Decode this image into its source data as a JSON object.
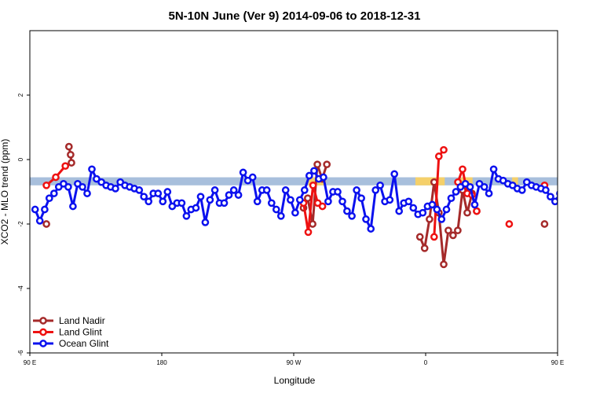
{
  "chart_data": {
    "type": "line",
    "title": "5N-10N June (Ver 9)   2014-09-06 to 2018-12-31",
    "xlabel": "Longitude",
    "ylabel": "XCO2 - MLO trend (ppm)",
    "xlim": [
      90,
      450
    ],
    "ylim": [
      -6,
      4
    ],
    "x_ticks": [
      {
        "value": 90,
        "label": "90 E"
      },
      {
        "value": 180,
        "label": "180"
      },
      {
        "value": 270,
        "label": "90 W"
      },
      {
        "value": 360,
        "label": "0"
      },
      {
        "value": 450,
        "label": "90 E"
      },
      {
        "value": 540,
        "label": "180"
      }
    ],
    "y_ticks": [
      {
        "value": -6,
        "label": "-6"
      },
      {
        "value": -4,
        "label": "-4"
      },
      {
        "value": -2,
        "label": "-2"
      },
      {
        "value": 0,
        "label": "0"
      },
      {
        "value": 2,
        "label": "2"
      }
    ],
    "band": {
      "y_low": -0.8,
      "y_high": -0.55,
      "color": "#a8bfdc",
      "land_color": "#f5d06a"
    },
    "legend_position": "bottom-left",
    "series": [
      {
        "name": "Land Nadir",
        "color": "#a52a2a",
        "segments": [
          [
            [
              101.3,
              -2.0
            ]
          ],
          [
            [
              116.7,
              0.4
            ],
            [
              117.8,
              0.15
            ],
            [
              118.4,
              -0.1
            ]
          ],
          [
            [
              276.7,
              -1.5
            ],
            [
              279.6,
              -1.2
            ],
            [
              282.9,
              -2.0
            ],
            [
              286.1,
              -0.15
            ],
            [
              289.4,
              -0.6
            ],
            [
              292.6,
              -0.15
            ]
          ],
          [
            [
              356.1,
              -2.4
            ],
            [
              359.3,
              -2.75
            ],
            [
              362.6,
              -1.85
            ],
            [
              365.8,
              -0.7
            ],
            [
              369.0,
              -1.65
            ],
            [
              372.3,
              -3.25
            ],
            [
              375.5,
              -2.2
            ],
            [
              378.7,
              -2.35
            ],
            [
              381.9,
              -2.2
            ],
            [
              385.2,
              -0.95
            ],
            [
              388.4,
              -1.65
            ],
            [
              391.6,
              -1.05
            ],
            [
              394.8,
              -1.6
            ]
          ],
          [
            [
              441.1,
              -2.0
            ]
          ],
          [
            [
              463.6,
              0.4
            ],
            [
              464.7,
              0.15
            ],
            [
              465.2,
              -0.1
            ]
          ]
        ]
      },
      {
        "name": "Land Glint",
        "color": "#ee1111",
        "segments": [
          [
            [
              101.3,
              -0.8
            ],
            [
              107.7,
              -0.55
            ],
            [
              114.2,
              -0.2
            ]
          ],
          [
            [
              276.7,
              -1.35
            ],
            [
              279.9,
              -2.25
            ],
            [
              283.2,
              -0.8
            ],
            [
              286.4,
              -1.35
            ],
            [
              289.6,
              -1.45
            ]
          ],
          [
            [
              365.8,
              -2.4
            ],
            [
              369.0,
              0.1
            ],
            [
              372.3,
              0.3
            ]
          ],
          [
            [
              382.0,
              -0.7
            ],
            [
              385.2,
              -0.3
            ],
            [
              388.4,
              -1.05
            ],
            [
              391.6,
              -1.1
            ],
            [
              394.8,
              -1.6
            ]
          ],
          [
            [
              417.0,
              -2.0
            ]
          ],
          [
            [
              441.1,
              -0.8
            ]
          ],
          [
            [
              462.5,
              -0.2
            ],
            [
              464.7,
              0.1
            ]
          ]
        ]
      },
      {
        "name": "Ocean Glint",
        "color": "#0b11ee",
        "segments": [
          [
            [
              93.6,
              -1.55
            ],
            [
              96.8,
              -1.9
            ],
            [
              100.1,
              -1.55
            ],
            [
              103.3,
              -1.2
            ],
            [
              106.5,
              -1.05
            ],
            [
              109.7,
              -0.85
            ],
            [
              113.0,
              -0.75
            ],
            [
              116.2,
              -0.85
            ],
            [
              119.4,
              -1.45
            ],
            [
              122.6,
              -0.75
            ],
            [
              125.9,
              -0.85
            ],
            [
              129.1,
              -1.05
            ],
            [
              132.3,
              -0.3
            ],
            [
              135.5,
              -0.6
            ],
            [
              138.8,
              -0.7
            ],
            [
              142.0,
              -0.8
            ],
            [
              145.2,
              -0.85
            ],
            [
              148.4,
              -0.9
            ],
            [
              151.7,
              -0.7
            ],
            [
              154.9,
              -0.8
            ],
            [
              158.1,
              -0.85
            ],
            [
              161.3,
              -0.9
            ],
            [
              164.6,
              -0.95
            ],
            [
              167.8,
              -1.15
            ],
            [
              171.0,
              -1.3
            ],
            [
              174.2,
              -1.05
            ],
            [
              177.5,
              -1.05
            ],
            [
              180.7,
              -1.3
            ],
            [
              183.9,
              -1.0
            ],
            [
              187.1,
              -1.45
            ],
            [
              190.4,
              -1.35
            ],
            [
              193.6,
              -1.35
            ],
            [
              196.8,
              -1.75
            ],
            [
              200.0,
              -1.55
            ],
            [
              203.3,
              -1.5
            ],
            [
              206.5,
              -1.15
            ],
            [
              209.7,
              -1.95
            ],
            [
              212.9,
              -1.25
            ],
            [
              216.2,
              -0.95
            ],
            [
              219.4,
              -1.35
            ],
            [
              222.6,
              -1.35
            ],
            [
              225.8,
              -1.1
            ],
            [
              229.1,
              -0.95
            ],
            [
              232.3,
              -1.1
            ],
            [
              235.5,
              -0.4
            ],
            [
              238.7,
              -0.65
            ],
            [
              242.0,
              -0.55
            ],
            [
              245.2,
              -1.3
            ],
            [
              248.4,
              -0.95
            ],
            [
              251.6,
              -0.95
            ],
            [
              254.9,
              -1.35
            ],
            [
              258.1,
              -1.55
            ],
            [
              261.3,
              -1.75
            ],
            [
              264.5,
              -0.95
            ],
            [
              267.8,
              -1.25
            ],
            [
              271.0,
              -1.65
            ],
            [
              274.2,
              -1.25
            ],
            [
              277.4,
              -0.95
            ],
            [
              280.6,
              -0.5
            ],
            [
              283.9,
              -0.35
            ],
            [
              287.1,
              -0.6
            ],
            [
              290.3,
              -0.55
            ],
            [
              293.5,
              -1.3
            ],
            [
              296.8,
              -1.0
            ],
            [
              300.0,
              -1.0
            ],
            [
              303.2,
              -1.3
            ],
            [
              306.4,
              -1.6
            ],
            [
              309.7,
              -1.75
            ],
            [
              312.9,
              -0.95
            ],
            [
              316.1,
              -1.2
            ],
            [
              319.3,
              -1.85
            ],
            [
              322.6,
              -2.15
            ],
            [
              325.8,
              -0.95
            ],
            [
              329.0,
              -0.8
            ],
            [
              332.2,
              -1.3
            ],
            [
              335.5,
              -1.25
            ],
            [
              338.7,
              -0.45
            ],
            [
              341.9,
              -1.6
            ],
            [
              345.1,
              -1.35
            ],
            [
              348.4,
              -1.3
            ],
            [
              351.6,
              -1.5
            ],
            [
              354.8,
              -1.7
            ],
            [
              358.0,
              -1.65
            ],
            [
              361.3,
              -1.45
            ],
            [
              364.5,
              -1.4
            ],
            [
              367.7,
              -1.55
            ],
            [
              370.9,
              -1.85
            ],
            [
              374.2,
              -1.55
            ],
            [
              377.4,
              -1.2
            ],
            [
              380.6,
              -1.0
            ],
            [
              383.8,
              -0.85
            ],
            [
              387.1,
              -0.75
            ],
            [
              390.3,
              -0.85
            ],
            [
              393.5,
              -1.4
            ],
            [
              396.7,
              -0.75
            ],
            [
              400.0,
              -0.85
            ],
            [
              403.2,
              -1.05
            ],
            [
              406.4,
              -0.3
            ],
            [
              409.6,
              -0.6
            ],
            [
              412.9,
              -0.65
            ],
            [
              416.1,
              -0.75
            ],
            [
              419.3,
              -0.8
            ],
            [
              422.5,
              -0.9
            ],
            [
              425.8,
              -0.95
            ],
            [
              429.0,
              -0.7
            ],
            [
              432.2,
              -0.8
            ],
            [
              435.4,
              -0.85
            ],
            [
              438.7,
              -0.9
            ],
            [
              441.9,
              -0.95
            ],
            [
              445.1,
              -1.15
            ],
            [
              448.3,
              -1.3
            ],
            [
              451.6,
              -1.05
            ],
            [
              454.8,
              -1.05
            ],
            [
              458.0,
              -1.3
            ],
            [
              461.2,
              -1.0
            ],
            [
              464.5,
              -1.45
            ],
            [
              467.7,
              -1.35
            ],
            [
              470.9,
              -1.35
            ],
            [
              474.1,
              -1.75
            ],
            [
              477.4,
              -1.55
            ],
            [
              480.6,
              -1.5
            ]
          ]
        ]
      }
    ]
  }
}
